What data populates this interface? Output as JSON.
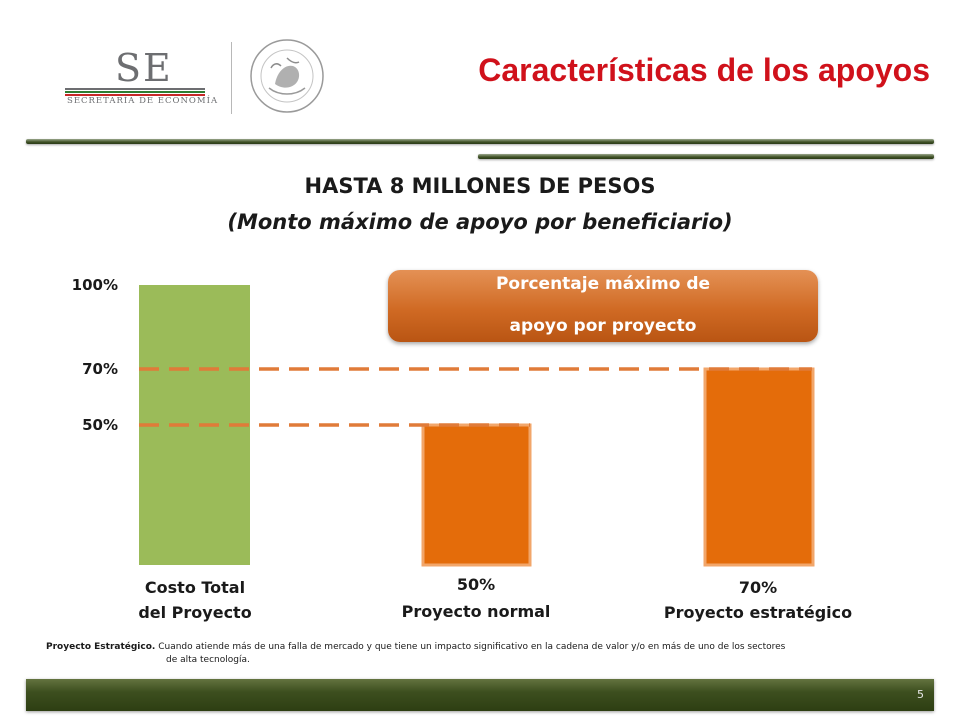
{
  "header": {
    "logo_letters": "SE",
    "logo_subtitle": "SECRETARÍA DE ECONOMÍA",
    "seal_text": "ESTADOS UNIDOS MEXICANOS",
    "title": "Características de los apoyos",
    "title_color": "#d0111b"
  },
  "headings": {
    "line1": "HASTA 8 MILLONES DE PESOS",
    "line2": "(Monto máximo de apoyo por beneficiario)"
  },
  "callout": {
    "line1": "Porcentaje máximo de",
    "line2": "apoyo por proyecto"
  },
  "chart_data": {
    "type": "bar",
    "ylim": [
      0,
      100
    ],
    "y_tick_labels": [
      {
        "value": 100,
        "label": "100%"
      },
      {
        "value": 70,
        "label": "70%"
      },
      {
        "value": 50,
        "label": "50%"
      }
    ],
    "reference_lines": [
      70,
      50
    ],
    "reference_color": "#e07b39",
    "bars": [
      {
        "category": [
          "Costo Total",
          "del Proyecto"
        ],
        "value_label": "",
        "value": 100,
        "color": "#9bbb59"
      },
      {
        "category": [
          "Proyecto normal"
        ],
        "value_label": "50%",
        "value": 50,
        "color": "#e46c0a"
      },
      {
        "category": [
          "Proyecto estratégico"
        ],
        "value_label": "70%",
        "value": 70,
        "color": "#e46c0a"
      }
    ]
  },
  "footnote": {
    "term": "Proyecto Estratégico.",
    "text1": "Cuando atiende más de una falla de mercado y que tiene un impacto significativo en la cadena de valor y/o en más de uno de los sectores",
    "text2": "de alta tecnología."
  },
  "footer": {
    "page_number": "5"
  }
}
